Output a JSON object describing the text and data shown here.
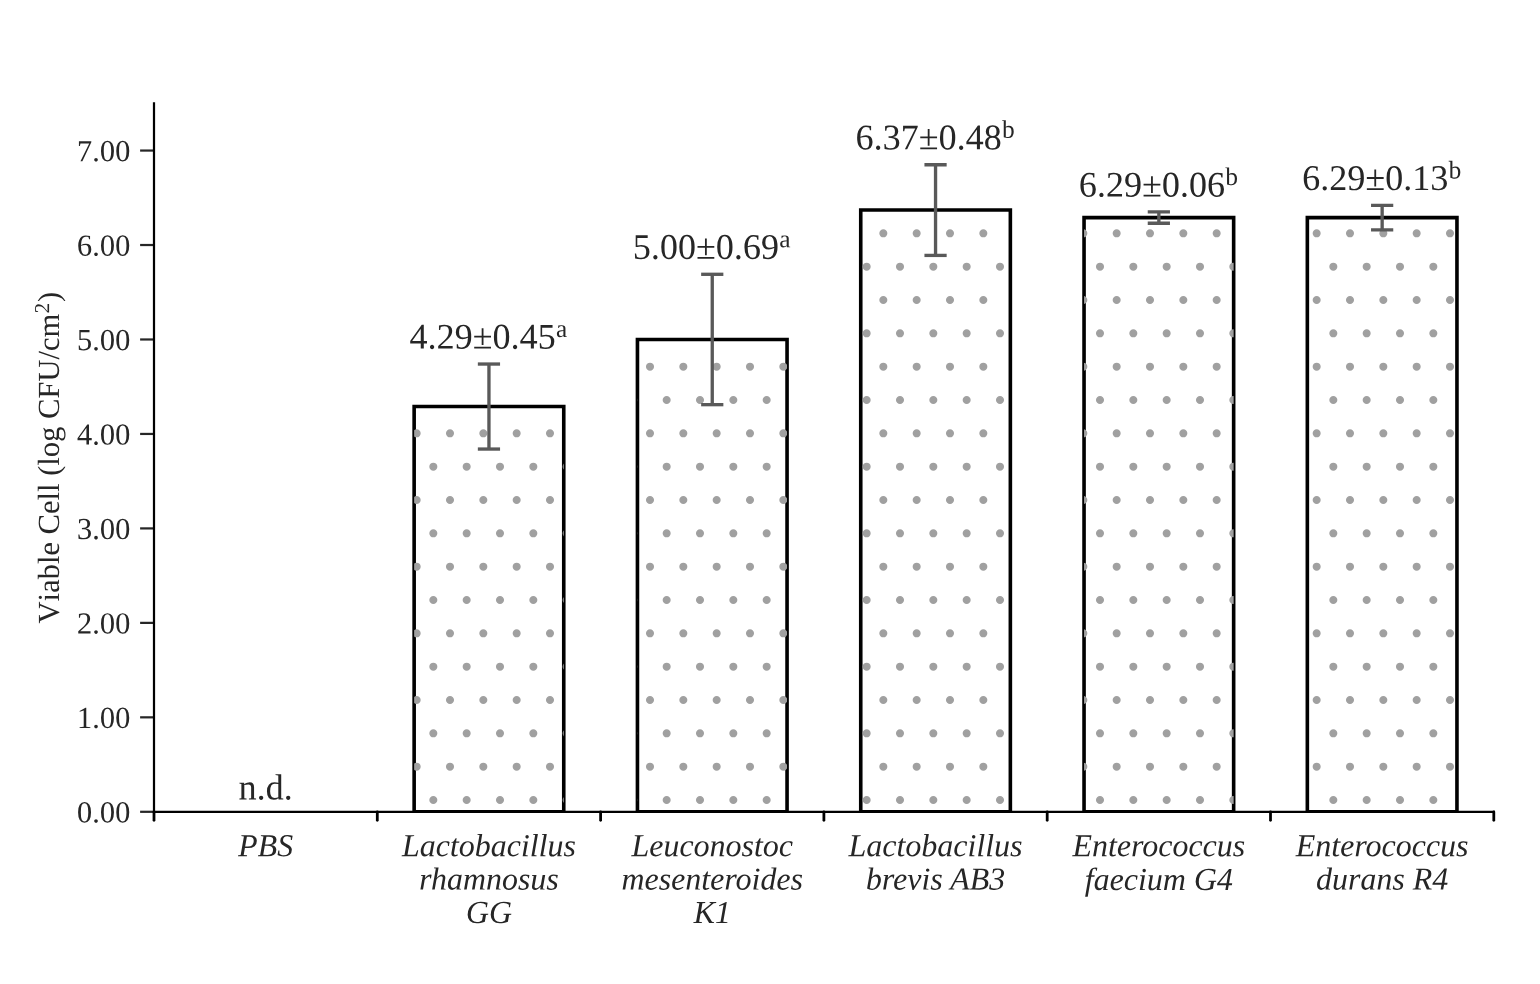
{
  "chart_data": {
    "type": "bar",
    "ylabel": "Viable Cell (log CFU/cm$^{2}$)",
    "categories": [
      "PBS",
      "Lactobacillus\nrhamnosus\nGG",
      "Leuconostoc\nmesenteroides\nK1",
      "Lactobacillus\nbrevis AB3",
      "Enterococcus\nfaecium G4",
      "Enterococcus\ndurans R4"
    ],
    "values": [
      null,
      4.29,
      5.0,
      6.37,
      6.29,
      6.29
    ],
    "errors": [
      null,
      0.45,
      0.69,
      0.48,
      0.06,
      0.13
    ],
    "value_labels": [
      "n.d.",
      "4.29±0.45$^{a}$",
      "5.00±0.69$^{a}$",
      "6.37±0.48$^{b}$",
      "6.29±0.06$^{b}$",
      "6.29±0.13$^{b}$"
    ],
    "color": "#ffffff",
    "ylim": [
      0,
      7.5
    ],
    "yticks": [
      {
        "value": 0,
        "label": "0.00"
      },
      {
        "value": 1,
        "label": "1.00"
      },
      {
        "value": 2,
        "label": "2.00"
      },
      {
        "value": 3,
        "label": "3.00"
      },
      {
        "value": 4,
        "label": "4.00"
      },
      {
        "value": 5,
        "label": "5.00"
      },
      {
        "value": 6,
        "label": "6.00"
      },
      {
        "value": 7,
        "label": "7.00"
      }
    ],
    "grid": false,
    "legend": false
  }
}
